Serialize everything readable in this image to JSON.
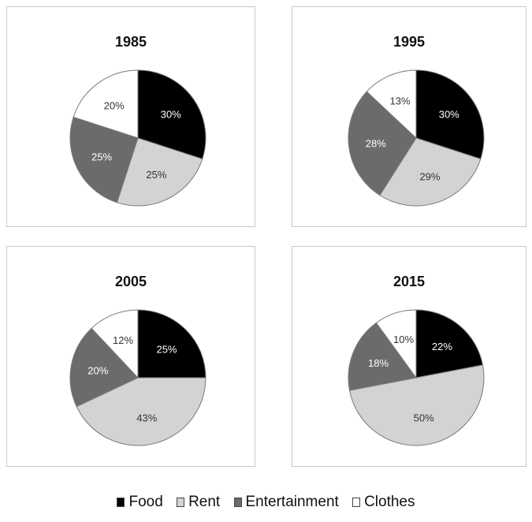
{
  "chart_data": [
    {
      "type": "pie",
      "title": "1985",
      "categories": [
        "Food",
        "Rent",
        "Entertainment",
        "Clothes"
      ],
      "values": [
        30,
        25,
        25,
        20
      ],
      "labels": [
        "30%",
        "25%",
        "25%",
        "20%"
      ]
    },
    {
      "type": "pie",
      "title": "1995",
      "categories": [
        "Food",
        "Rent",
        "Entertainment",
        "Clothes"
      ],
      "values": [
        30,
        29,
        28,
        13
      ],
      "labels": [
        "30%",
        "29%",
        "28%",
        "13%"
      ]
    },
    {
      "type": "pie",
      "title": "2005",
      "categories": [
        "Food",
        "Rent",
        "Entertainment",
        "Clothes"
      ],
      "values": [
        25,
        43,
        20,
        12
      ],
      "labels": [
        "25%",
        "43%",
        "20%",
        "12%"
      ]
    },
    {
      "type": "pie",
      "title": "2015",
      "categories": [
        "Food",
        "Rent",
        "Entertainment",
        "Clothes"
      ],
      "values": [
        22,
        50,
        18,
        10
      ],
      "labels": [
        "22%",
        "50%",
        "18%",
        "10%"
      ]
    }
  ],
  "legend": [
    {
      "label": "Food",
      "color": "#000000"
    },
    {
      "label": "Rent",
      "color": "#d3d3d3"
    },
    {
      "label": "Entertainment",
      "color": "#6b6b6b"
    },
    {
      "label": "Clothes",
      "color": "#ffffff"
    }
  ],
  "label_colors": [
    "#ffffff",
    "#333333",
    "#ffffff",
    "#333333"
  ]
}
